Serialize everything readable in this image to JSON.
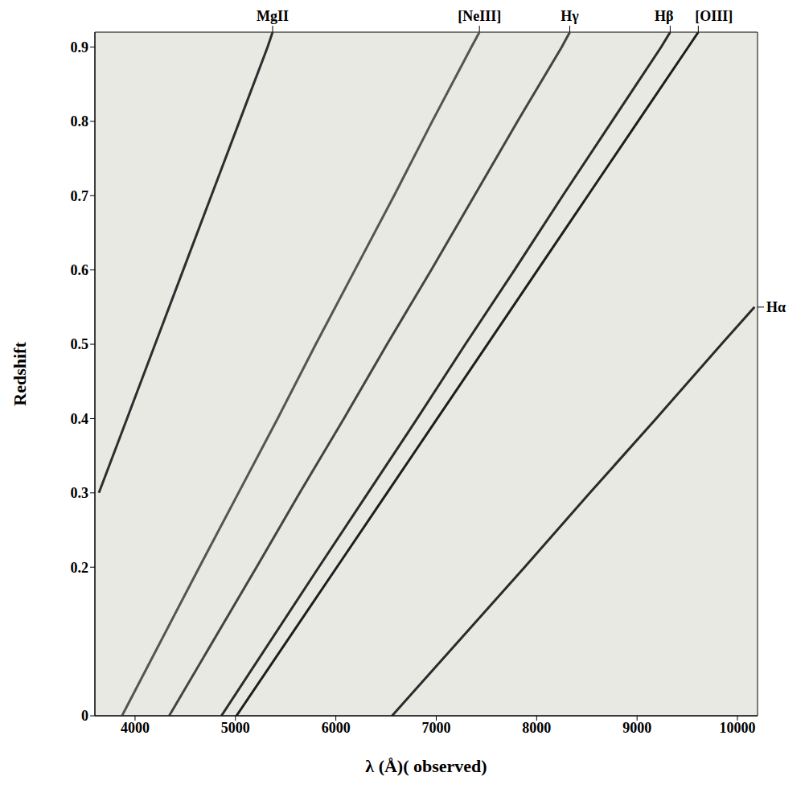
{
  "chart_data": {
    "type": "line",
    "x_label": "λ (Å)( observed)",
    "y_label": "Redshift",
    "xlim": [
      3600,
      10200
    ],
    "xticks": [
      4000,
      5000,
      6000,
      7000,
      8000,
      9000,
      10000
    ],
    "ylim": [
      0,
      0.92
    ],
    "yticks": [
      0,
      0.2,
      0.3,
      0.4,
      0.5,
      0.6,
      0.7,
      0.8,
      0.9
    ],
    "grid": false,
    "series": [
      {
        "name": "MgII",
        "color": "#2e2e2e",
        "x": [
          3640,
          3920,
          4200,
          4480,
          4760,
          5040,
          5320,
          5370
        ],
        "values": [
          0.3,
          0.4,
          0.5,
          0.6,
          0.7,
          0.8,
          0.9,
          0.92
        ]
      },
      {
        "name": "[NeIII]",
        "color": "#555555",
        "x": [
          3870,
          4640,
          5030,
          5420,
          5800,
          6190,
          6580,
          6960,
          7350,
          7430
        ],
        "values": [
          0,
          0.2,
          0.3,
          0.4,
          0.5,
          0.6,
          0.7,
          0.8,
          0.9,
          0.92
        ]
      },
      {
        "name": "Hγ",
        "color": "#444444",
        "x": [
          4340,
          5210,
          5640,
          6080,
          6510,
          6950,
          7380,
          7810,
          8250,
          8330
        ],
        "values": [
          0,
          0.2,
          0.3,
          0.4,
          0.5,
          0.6,
          0.7,
          0.8,
          0.9,
          0.92
        ]
      },
      {
        "name": "Hβ",
        "color": "#2a2a2a",
        "x": [
          4860,
          5830,
          6320,
          6810,
          7290,
          7780,
          8260,
          8750,
          9240,
          9330
        ],
        "values": [
          0,
          0.2,
          0.3,
          0.4,
          0.5,
          0.6,
          0.7,
          0.8,
          0.9,
          0.92
        ]
      },
      {
        "name": "[OIII]",
        "color": "#1e1e1e",
        "x": [
          5010,
          6010,
          6510,
          7010,
          7510,
          8010,
          8510,
          9010,
          9510,
          9610
        ],
        "values": [
          0,
          0.2,
          0.3,
          0.4,
          0.5,
          0.6,
          0.7,
          0.8,
          0.9,
          0.92
        ]
      },
      {
        "name": "Hα",
        "color": "#2b2b2b",
        "x": [
          6560,
          7880,
          8530,
          9190,
          9840,
          10170
        ],
        "values": [
          0,
          0.2,
          0.3,
          0.4,
          0.5,
          0.55
        ]
      }
    ],
    "annotations": [
      {
        "text": "MgII",
        "x": 5370
      },
      {
        "text": "[NeIII]",
        "x": 7430
      },
      {
        "text": "Hγ",
        "x": 8330
      },
      {
        "text": "Hβ",
        "x": 9330
      },
      {
        "text": "[OIII]",
        "x": 9610
      },
      {
        "text": "Hα",
        "y": 0.55
      }
    ]
  }
}
